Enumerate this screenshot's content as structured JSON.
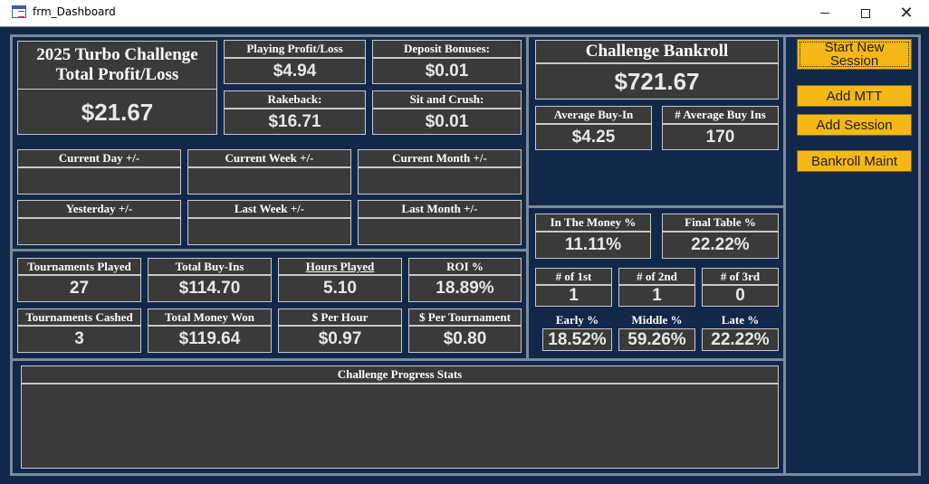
{
  "window": {
    "title": "frm_Dashboard"
  },
  "colors": {
    "background": "#11284a",
    "panel_border": "#7c8a99",
    "field_bg": "#3a3a3a",
    "button": "#f5b817"
  },
  "summary": {
    "title_line1": "2025 Turbo Challenge",
    "title_line2": "Total Profit/Loss",
    "total": "$21.67",
    "playing_label": "Playing Profit/Loss",
    "playing_value": "$4.94",
    "deposit_label": "Deposit Bonuses:",
    "deposit_value": "$0.01",
    "rakeback_label": "Rakeback:",
    "rakeback_value": "$16.71",
    "sitcrush_label": "Sit and Crush:",
    "sitcrush_value": "$0.01"
  },
  "periods": {
    "current_day": "Current Day  +/-",
    "current_week": "Current Week  +/-",
    "current_month": "Current Month  +/-",
    "yesterday": "Yesterday  +/-",
    "last_week": "Last Week  +/-",
    "last_month": "Last Month  +/-"
  },
  "stats": {
    "tournaments_played_label": "Tournaments Played",
    "tournaments_played": "27",
    "total_buyins_label": "Total Buy-Ins",
    "total_buyins": "$114.70",
    "hours_played_label": "Hours Played",
    "hours_played": "5.10",
    "roi_label": "ROI %",
    "roi": "18.89%",
    "tournaments_cashed_label": "Tournaments Cashed",
    "tournaments_cashed": "3",
    "total_won_label": "Total Money Won",
    "total_won": "$119.64",
    "per_hour_label": "$ Per Hour",
    "per_hour": "$0.97",
    "per_tournament_label": "$ Per Tournament",
    "per_tournament": "$0.80"
  },
  "progress": {
    "label": "Challenge Progress Stats"
  },
  "bankroll": {
    "title": "Challenge Bankroll",
    "value": "$721.67",
    "avg_buyin_label": "Average Buy-In",
    "avg_buyin": "$4.25",
    "avg_buyins_count_label": "# Average Buy Ins",
    "avg_buyins_count": "170"
  },
  "results": {
    "itm_label": "In The Money %",
    "itm": "11.11%",
    "final_table_label": "Final Table %",
    "final_table": "22.22%",
    "first_label": "# of 1st",
    "first": "1",
    "second_label": "# of 2nd",
    "second": "1",
    "third_label": "# of 3rd",
    "third": "0",
    "early_label": "Early %",
    "early": "18.52%",
    "middle_label": "Middle %",
    "middle": "59.26%",
    "late_label": "Late %",
    "late": "22.22%"
  },
  "buttons": {
    "start_new_session": "Start New Session",
    "add_mtt": "Add MTT",
    "add_session": "Add Session",
    "bankroll_maint": "Bankroll Maint"
  }
}
